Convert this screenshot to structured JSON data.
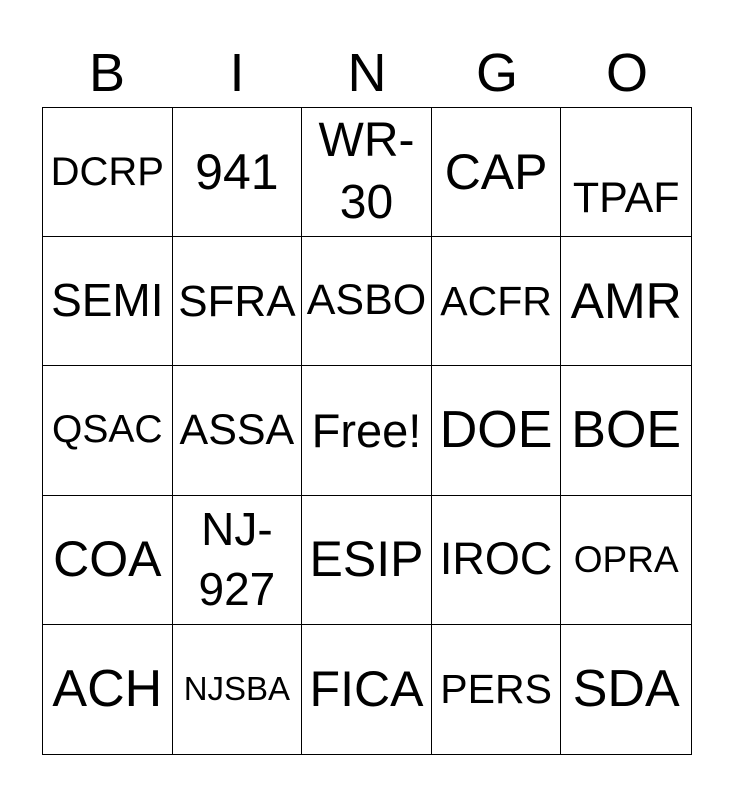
{
  "page": {
    "title": "BINGO card",
    "background_color": "#ffffff",
    "text_color": "#000000",
    "grid_line_color": "#000000"
  },
  "header": {
    "letters": [
      "B",
      "I",
      "N",
      "G",
      "O"
    ]
  },
  "card": {
    "columns": 5,
    "rows_count": 5,
    "free_space_text": "Free!",
    "rows": [
      [
        {
          "text": "DCRP",
          "lines": [
            "DCRP"
          ],
          "size": 40
        },
        {
          "text": "941",
          "lines": [
            "941"
          ],
          "size": 50
        },
        {
          "text": "WR-30",
          "lines": [
            "WR-",
            "30"
          ],
          "size": 48
        },
        {
          "text": "CAP",
          "lines": [
            "CAP"
          ],
          "size": 50
        },
        {
          "text": "TPAF",
          "lines": [
            "TPAF"
          ],
          "size": 43,
          "shift_down": true
        }
      ],
      [
        {
          "text": "SEMI",
          "lines": [
            "SEMI"
          ],
          "size": 46
        },
        {
          "text": "SFRA",
          "lines": [
            "SFRA"
          ],
          "size": 44
        },
        {
          "text": "ASBO",
          "lines": [
            "ASBO"
          ],
          "size": 43
        },
        {
          "text": "ACFR",
          "lines": [
            "ACFR"
          ],
          "size": 41
        },
        {
          "text": "AMR",
          "lines": [
            "AMR"
          ],
          "size": 50
        }
      ],
      [
        {
          "text": "QSAC",
          "lines": [
            "QSAC"
          ],
          "size": 39
        },
        {
          "text": "ASSA",
          "lines": [
            "ASSA"
          ],
          "size": 43
        },
        {
          "text": "Free!",
          "lines": [
            "Free!"
          ],
          "size": 47,
          "free_space": true
        },
        {
          "text": "DOE",
          "lines": [
            "DOE"
          ],
          "size": 52
        },
        {
          "text": "BOE",
          "lines": [
            "BOE"
          ],
          "size": 52
        }
      ],
      [
        {
          "text": "COA",
          "lines": [
            "COA"
          ],
          "size": 50
        },
        {
          "text": "NJ-927",
          "lines": [
            "NJ-",
            "927"
          ],
          "size": 46
        },
        {
          "text": "ESIP",
          "lines": [
            "ESIP"
          ],
          "size": 50
        },
        {
          "text": "IROC",
          "lines": [
            "IROC"
          ],
          "size": 45
        },
        {
          "text": "OPRA",
          "lines": [
            "OPRA"
          ],
          "size": 37
        }
      ],
      [
        {
          "text": "ACH",
          "lines": [
            "ACH"
          ],
          "size": 52
        },
        {
          "text": "NJSBA",
          "lines": [
            "NJSBA"
          ],
          "size": 33
        },
        {
          "text": "FICA",
          "lines": [
            "FICA"
          ],
          "size": 50
        },
        {
          "text": "PERS",
          "lines": [
            "PERS"
          ],
          "size": 41
        },
        {
          "text": "SDA",
          "lines": [
            "SDA"
          ],
          "size": 52
        }
      ]
    ]
  }
}
